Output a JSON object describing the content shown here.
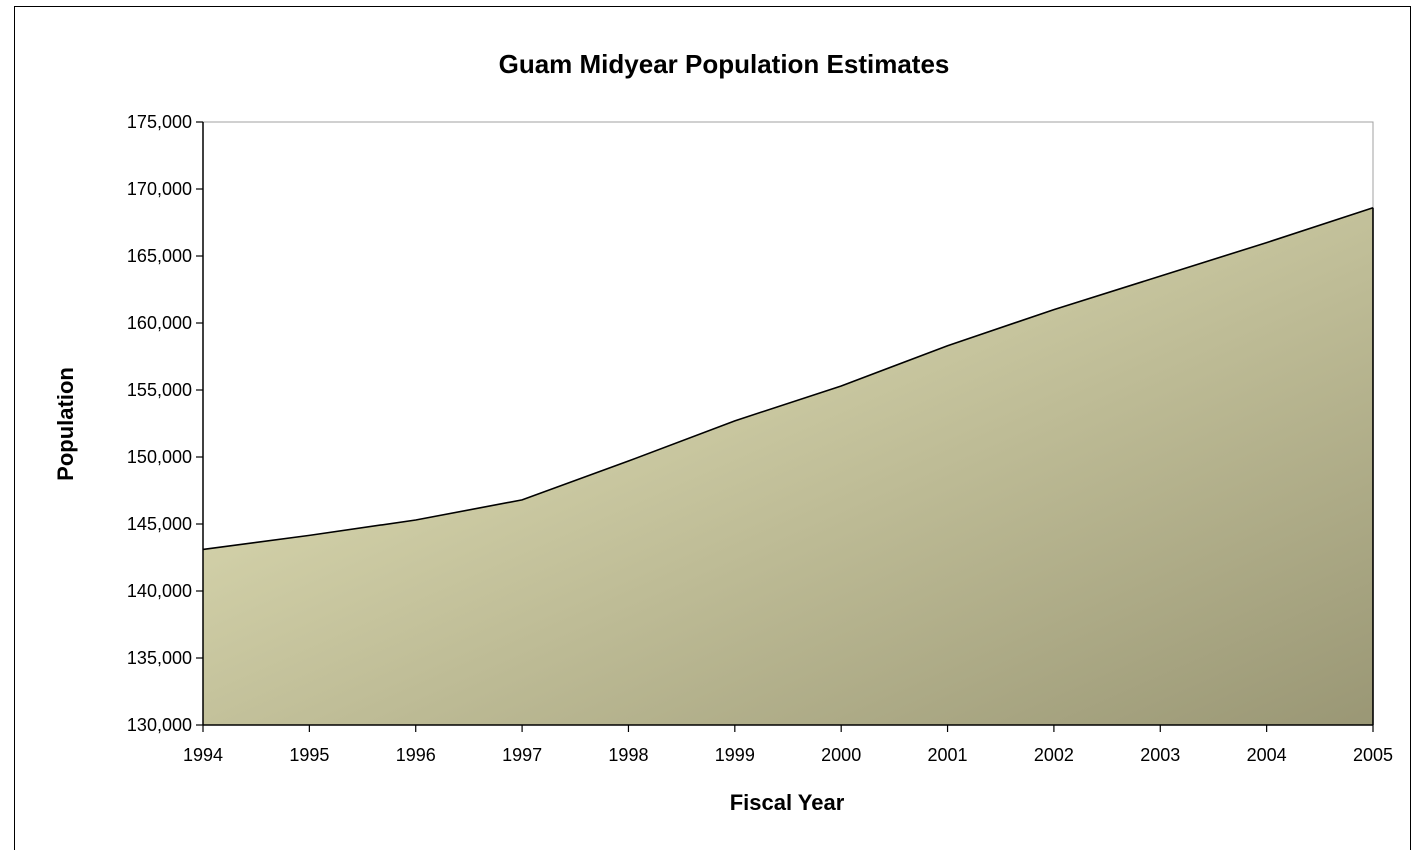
{
  "chart_data": {
    "type": "area",
    "title": "Guam Midyear Population Estimates",
    "xlabel": "Fiscal Year",
    "ylabel": "Population",
    "x": [
      "1994",
      "1995",
      "1996",
      "1997",
      "1998",
      "1999",
      "2000",
      "2001",
      "2002",
      "2003",
      "2004",
      "2005"
    ],
    "series": [
      {
        "values": [
          143100,
          144150,
          145300,
          146800,
          149700,
          152700,
          155300,
          158300,
          161000,
          163500,
          166000,
          168600
        ]
      }
    ],
    "ylim": [
      130000,
      175000
    ],
    "yticks": [
      "130,000",
      "135,000",
      "140,000",
      "145,000",
      "150,000",
      "155,000",
      "160,000",
      "165,000",
      "170,000",
      "175,000"
    ],
    "grid": false,
    "legend": "none",
    "colors": {
      "fill_light": "#ECEBC0",
      "fill_dark": "#9A9775",
      "line": "#000000"
    }
  }
}
